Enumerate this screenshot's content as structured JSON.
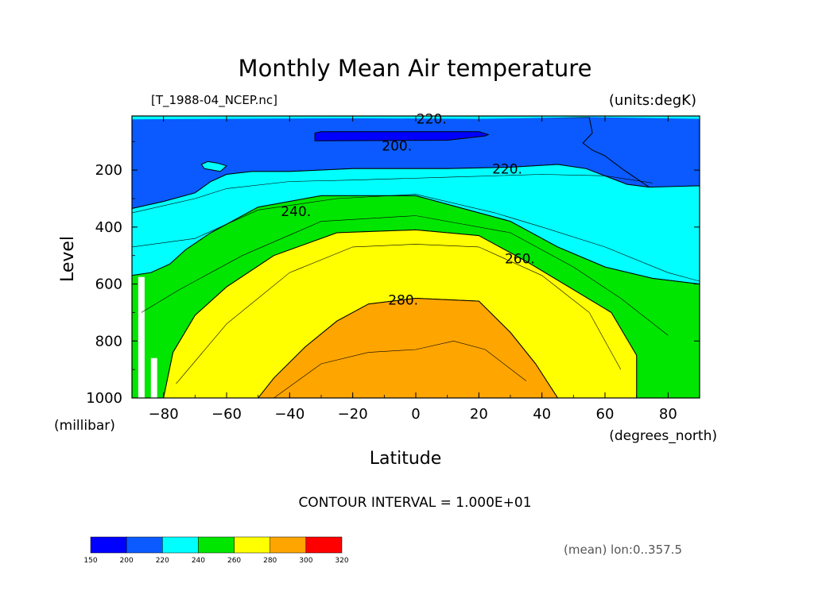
{
  "chart_data": {
    "type": "contour",
    "title": "Monthly Mean Air temperature",
    "file_label": "[T_1988-04_NCEP.nc]",
    "units_label": "(units:degK)",
    "xlabel": "Latitude",
    "ylabel": "Level",
    "x_units": "(degrees_north)",
    "y_units": "(millibar)",
    "xlim": [
      -90,
      90
    ],
    "ylim": [
      1000,
      10
    ],
    "y_inverted": true,
    "x_ticks": [
      -80,
      -60,
      -40,
      -20,
      0,
      20,
      40,
      60,
      80
    ],
    "x_tick_labels": [
      "−80",
      "−60",
      "−40",
      "−20",
      "0",
      "20",
      "40",
      "60",
      "80"
    ],
    "y_ticks": [
      200,
      400,
      600,
      800,
      1000
    ],
    "y_tick_labels": [
      "200",
      "400",
      "600",
      "800",
      "1000"
    ],
    "contour_interval_text": "CONTOUR INTERVAL = 1.000E+01",
    "footnote": "(mean) lon:0..357.5",
    "colorbar": {
      "levels": [
        150,
        200,
        220,
        240,
        260,
        280,
        300,
        320
      ],
      "level_labels": [
        "150",
        "200",
        "220",
        "240",
        "260",
        "280",
        "300",
        "320"
      ],
      "colors": [
        "#0000ff",
        "#0a5aff",
        "#00ffff",
        "#00e600",
        "#ffff00",
        "#ffa500",
        "#ff0000"
      ]
    },
    "contour_labels": [
      {
        "text": "220.",
        "lat": 5,
        "lev": 20
      },
      {
        "text": "200.",
        "lat": -6,
        "lev": 115
      },
      {
        "text": "220.",
        "lat": 29,
        "lev": 195
      },
      {
        "text": "240.",
        "lat": -38,
        "lev": 345
      },
      {
        "text": "260.",
        "lat": 33,
        "lev": 510
      },
      {
        "text": "280.",
        "lat": -4,
        "lev": 655
      }
    ],
    "regions": [
      {
        "name": "lt-200",
        "color": "#0000ff",
        "outline": [
          [
            -32,
            70
          ],
          [
            -30,
            65
          ],
          [
            20,
            65
          ],
          [
            23,
            75
          ],
          [
            22,
            80
          ],
          [
            10,
            95
          ],
          [
            -32,
            97
          ]
        ]
      },
      {
        "name": "200-220",
        "color": "#0a5aff",
        "outline": [
          [
            -90,
            20
          ],
          [
            -60,
            12
          ],
          [
            -20,
            14
          ],
          [
            0,
            17
          ],
          [
            30,
            15
          ],
          [
            60,
            10
          ],
          [
            90,
            18
          ],
          [
            90,
            10
          ],
          [
            -90,
            10
          ]
        ]
      },
      {
        "name": "200-220-main",
        "color": "#0a5aff",
        "outline": [
          [
            -90,
            15
          ],
          [
            -88,
            15
          ],
          [
            55,
            15
          ],
          [
            56,
            70
          ],
          [
            53,
            105
          ],
          [
            56,
            130
          ],
          [
            60,
            150
          ],
          [
            66,
            200
          ],
          [
            74,
            260
          ],
          [
            67,
            250
          ],
          [
            54,
            195
          ],
          [
            45,
            180
          ],
          [
            30,
            190
          ],
          [
            10,
            195
          ],
          [
            -20,
            195
          ],
          [
            -40,
            205
          ],
          [
            -52,
            205
          ],
          [
            -60,
            215
          ],
          [
            -65,
            240
          ],
          [
            -70,
            280
          ],
          [
            -80,
            310
          ],
          [
            -90,
            335
          ]
        ]
      },
      {
        "name": "200-220-right",
        "color": "#0a5aff",
        "outline": [
          [
            72,
            295
          ],
          [
            78,
            260
          ],
          [
            90,
            255
          ],
          [
            90,
            305
          ],
          [
            72,
            305
          ]
        ]
      },
      {
        "name": "220-240",
        "color": "#00ffff",
        "outline": [
          [
            -90,
            335
          ],
          [
            -80,
            310
          ],
          [
            -70,
            280
          ],
          [
            -65,
            240
          ],
          [
            -60,
            215
          ],
          [
            -52,
            205
          ],
          [
            -40,
            205
          ],
          [
            -20,
            195
          ],
          [
            10,
            195
          ],
          [
            30,
            190
          ],
          [
            45,
            180
          ],
          [
            54,
            195
          ],
          [
            67,
            250
          ],
          [
            74,
            260
          ],
          [
            90,
            255
          ],
          [
            90,
            600
          ],
          [
            75,
            580
          ],
          [
            60,
            540
          ],
          [
            45,
            470
          ],
          [
            30,
            380
          ],
          [
            0,
            290
          ],
          [
            -30,
            290
          ],
          [
            -50,
            330
          ],
          [
            -65,
            420
          ],
          [
            -73,
            480
          ],
          [
            -78,
            530
          ],
          [
            -84,
            560
          ],
          [
            -90,
            570
          ]
        ]
      },
      {
        "name": "240-260",
        "color": "#00e600",
        "outline": [
          [
            -90,
            570
          ],
          [
            -84,
            560
          ],
          [
            -78,
            530
          ],
          [
            -73,
            480
          ],
          [
            -65,
            420
          ],
          [
            -50,
            330
          ],
          [
            -30,
            290
          ],
          [
            0,
            290
          ],
          [
            30,
            380
          ],
          [
            45,
            470
          ],
          [
            60,
            540
          ],
          [
            75,
            580
          ],
          [
            90,
            600
          ],
          [
            90,
            1000
          ],
          [
            70,
            1000
          ],
          [
            70,
            850
          ],
          [
            62,
            700
          ],
          [
            50,
            620
          ],
          [
            35,
            520
          ],
          [
            20,
            430
          ],
          [
            0,
            410
          ],
          [
            -25,
            420
          ],
          [
            -45,
            500
          ],
          [
            -60,
            610
          ],
          [
            -70,
            710
          ],
          [
            -77,
            840
          ],
          [
            -80,
            1000
          ],
          [
            -90,
            1000
          ]
        ]
      },
      {
        "name": "260-280",
        "color": "#ffff00",
        "outline": [
          [
            -80,
            1000
          ],
          [
            -77,
            840
          ],
          [
            -70,
            710
          ],
          [
            -60,
            610
          ],
          [
            -45,
            500
          ],
          [
            -25,
            420
          ],
          [
            0,
            410
          ],
          [
            20,
            430
          ],
          [
            35,
            520
          ],
          [
            50,
            620
          ],
          [
            62,
            700
          ],
          [
            70,
            850
          ],
          [
            70,
            1000
          ],
          [
            45,
            1000
          ],
          [
            38,
            880
          ],
          [
            30,
            770
          ],
          [
            20,
            660
          ],
          [
            0,
            650
          ],
          [
            -15,
            670
          ],
          [
            -25,
            730
          ],
          [
            -35,
            820
          ],
          [
            -45,
            930
          ],
          [
            -50,
            1000
          ]
        ]
      },
      {
        "name": "280-300",
        "color": "#ffa500",
        "outline": [
          [
            -50,
            1000
          ],
          [
            -45,
            930
          ],
          [
            -35,
            820
          ],
          [
            -25,
            730
          ],
          [
            -15,
            670
          ],
          [
            0,
            650
          ],
          [
            20,
            660
          ],
          [
            30,
            770
          ],
          [
            38,
            880
          ],
          [
            45,
            1000
          ]
        ]
      }
    ],
    "missing_regions": [
      {
        "outline": [
          [
            -88,
            575
          ],
          [
            -86,
            575
          ],
          [
            -86,
            1000
          ],
          [
            -88,
            1000
          ]
        ]
      },
      {
        "outline": [
          [
            -84,
            860
          ],
          [
            -82,
            860
          ],
          [
            -82,
            1000
          ],
          [
            -84,
            1000
          ]
        ]
      }
    ],
    "blob_200_220": {
      "color": "#00ffff",
      "outline": [
        [
          -66,
          170
        ],
        [
          -63,
          175
        ],
        [
          -60,
          185
        ],
        [
          -62,
          205
        ],
        [
          -67,
          195
        ],
        [
          -68,
          180
        ]
      ]
    },
    "thin_contours": [
      [
        [
          -90,
          350
        ],
        [
          -70,
          300
        ],
        [
          -60,
          265
        ],
        [
          -40,
          240
        ],
        [
          -20,
          235
        ],
        [
          10,
          225
        ],
        [
          40,
          215
        ],
        [
          60,
          220
        ],
        [
          75,
          245
        ]
      ],
      [
        [
          -90,
          470
        ],
        [
          -70,
          440
        ],
        [
          -50,
          340
        ],
        [
          -25,
          300
        ],
        [
          0,
          285
        ],
        [
          25,
          350
        ],
        [
          40,
          400
        ],
        [
          60,
          470
        ],
        [
          80,
          560
        ],
        [
          90,
          590
        ]
      ],
      [
        [
          -87,
          700
        ],
        [
          -75,
          620
        ],
        [
          -55,
          500
        ],
        [
          -30,
          380
        ],
        [
          0,
          360
        ],
        [
          30,
          420
        ],
        [
          50,
          540
        ],
        [
          65,
          650
        ],
        [
          80,
          780
        ]
      ],
      [
        [
          -76,
          950
        ],
        [
          -60,
          740
        ],
        [
          -40,
          560
        ],
        [
          -20,
          470
        ],
        [
          0,
          460
        ],
        [
          20,
          470
        ],
        [
          40,
          570
        ],
        [
          55,
          700
        ],
        [
          65,
          900
        ]
      ],
      [
        [
          -45,
          1000
        ],
        [
          -30,
          880
        ],
        [
          -15,
          840
        ],
        [
          0,
          830
        ],
        [
          12,
          800
        ],
        [
          22,
          830
        ],
        [
          35,
          940
        ]
      ]
    ]
  }
}
